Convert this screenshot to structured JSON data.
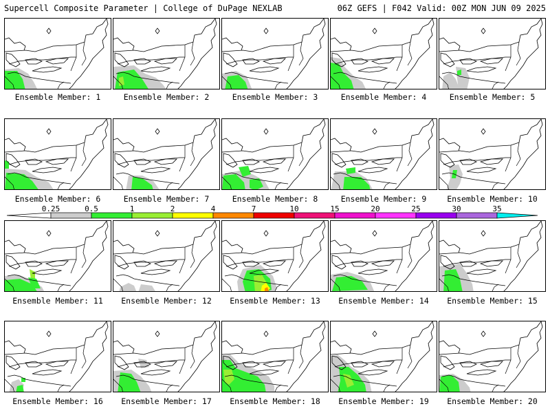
{
  "header": {
    "left_title": "Supercell Composite Parameter | College of DuPage NEXLAB",
    "right_title": "06Z GEFS | F042 Valid: 00Z MON JUN 09 2025"
  },
  "member_label_prefix": "Ensemble Member: ",
  "members": [
    {
      "label": "Ensemble Member: 1"
    },
    {
      "label": "Ensemble Member: 2"
    },
    {
      "label": "Ensemble Member: 3"
    },
    {
      "label": "Ensemble Member: 4"
    },
    {
      "label": "Ensemble Member: 5"
    },
    {
      "label": "Ensemble Member: 6"
    },
    {
      "label": "Ensemble Member: 7"
    },
    {
      "label": "Ensemble Member: 8"
    },
    {
      "label": "Ensemble Member: 9"
    },
    {
      "label": "Ensemble Member: 10"
    },
    {
      "label": "Ensemble Member: 11"
    },
    {
      "label": "Ensemble Member: 12"
    },
    {
      "label": "Ensemble Member: 13"
    },
    {
      "label": "Ensemble Member: 14"
    },
    {
      "label": "Ensemble Member: 15"
    },
    {
      "label": "Ensemble Member: 16"
    },
    {
      "label": "Ensemble Member: 17"
    },
    {
      "label": "Ensemble Member: 18"
    },
    {
      "label": "Ensemble Member: 19"
    },
    {
      "label": "Ensemble Member: 20"
    }
  ],
  "colorbar": {
    "ticks": [
      "0.25",
      "0.5",
      "1",
      "2",
      "4",
      "7",
      "10",
      "15",
      "20",
      "25",
      "30",
      "35"
    ],
    "colors": [
      "#cccccc",
      "#33ee33",
      "#99ee33",
      "#ffff00",
      "#ff8800",
      "#ee0000",
      "#ee1177",
      "#ee11cc",
      "#ff33ff",
      "#9900ee",
      "#aa66dd",
      "#00eeee"
    ],
    "left_arrow_color": "#ffffff"
  }
}
